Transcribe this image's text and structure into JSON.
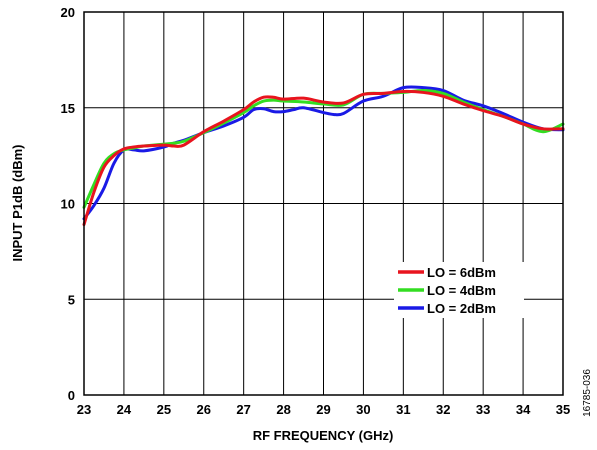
{
  "chart_data": {
    "type": "line",
    "title": "",
    "xlabel": "RF FREQUENCY (GHz)",
    "ylabel": "INPUT P1dB (dBm)",
    "xlim": [
      23,
      35
    ],
    "ylim": [
      0,
      20
    ],
    "xticks": [
      23,
      24,
      25,
      26,
      27,
      28,
      29,
      30,
      31,
      32,
      33,
      34,
      35
    ],
    "yticks": [
      0,
      5,
      10,
      15,
      20
    ],
    "grid": true,
    "legend_position": "right",
    "figure_id": "16785-036",
    "series": [
      {
        "name": "LO = 6dBm",
        "color": "#e8141e",
        "x": [
          23,
          23.25,
          23.5,
          23.75,
          24,
          24.25,
          24.5,
          25,
          25.25,
          25.5,
          26,
          26.5,
          27,
          27.25,
          27.5,
          27.75,
          28,
          28.5,
          29,
          29.5,
          30,
          30.5,
          31,
          31.5,
          32,
          32.5,
          33,
          33.5,
          34,
          34.5,
          35
        ],
        "y": [
          8.9,
          10.6,
          11.9,
          12.5,
          12.85,
          12.95,
          13.0,
          13.05,
          13.0,
          13.05,
          13.75,
          14.3,
          14.9,
          15.3,
          15.55,
          15.55,
          15.45,
          15.5,
          15.3,
          15.25,
          15.7,
          15.75,
          15.85,
          15.8,
          15.6,
          15.2,
          14.85,
          14.55,
          14.15,
          13.9,
          13.9
        ]
      },
      {
        "name": "LO = 4dBm",
        "color": "#33dd22",
        "x": [
          23,
          23.25,
          23.5,
          23.75,
          24,
          24.25,
          24.5,
          25,
          25.25,
          25.5,
          26,
          26.5,
          27,
          27.25,
          27.5,
          27.75,
          28,
          28.5,
          29,
          29.5,
          30,
          30.5,
          31,
          31.5,
          32,
          32.5,
          33,
          33.5,
          34,
          34.5,
          35
        ],
        "y": [
          9.8,
          11.0,
          12.1,
          12.6,
          12.8,
          12.9,
          13.0,
          13.1,
          13.15,
          13.25,
          13.7,
          14.2,
          14.75,
          15.1,
          15.35,
          15.4,
          15.35,
          15.3,
          15.2,
          15.15,
          15.7,
          15.75,
          15.8,
          15.9,
          15.75,
          15.3,
          14.9,
          14.55,
          14.15,
          13.75,
          14.15
        ]
      },
      {
        "name": "LO = 2dBm",
        "color": "#1a1ae6",
        "x": [
          23,
          23.25,
          23.5,
          23.75,
          24,
          24.25,
          24.5,
          25,
          25.25,
          25.5,
          26,
          26.5,
          27,
          27.25,
          27.5,
          27.75,
          28,
          28.25,
          28.5,
          29,
          29.25,
          29.5,
          30,
          30.5,
          31,
          31.5,
          32,
          32.5,
          33,
          33.5,
          34,
          34.5,
          35
        ],
        "y": [
          9.2,
          9.9,
          10.8,
          12.1,
          12.8,
          12.8,
          12.75,
          12.95,
          13.15,
          13.3,
          13.7,
          14.05,
          14.5,
          14.9,
          14.95,
          14.8,
          14.8,
          14.9,
          15.0,
          14.75,
          14.65,
          14.7,
          15.35,
          15.6,
          16.05,
          16.05,
          15.9,
          15.4,
          15.1,
          14.7,
          14.25,
          13.9,
          13.85
        ]
      }
    ]
  }
}
